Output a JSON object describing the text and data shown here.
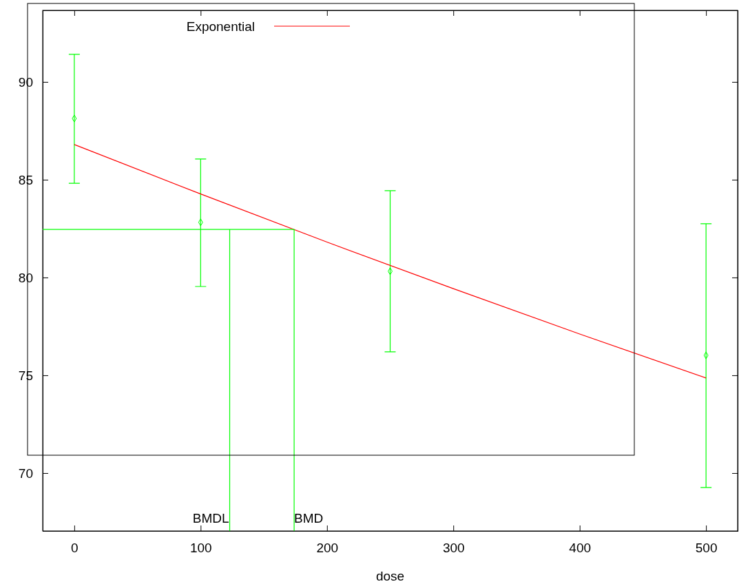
{
  "chart_data": {
    "type": "scatter",
    "xlabel": "dose",
    "xlim": [
      -25,
      525
    ],
    "ylim": [
      67.04,
      93.66
    ],
    "xticks": [
      0,
      100,
      200,
      300,
      400,
      500
    ],
    "yticks": [
      70,
      75,
      80,
      85,
      90
    ],
    "grid": false,
    "legend": "top",
    "series": [
      {
        "marker": "diamond",
        "color": "#00ff00",
        "x": [
          0,
          100,
          250,
          500
        ],
        "values": [
          88.13,
          82.82,
          80.32,
          76.02
        ],
        "errors": [
          [
            84.82,
            91.41
          ],
          [
            79.54,
            86.06
          ],
          [
            76.2,
            84.44
          ],
          [
            69.26,
            82.75
          ]
        ]
      },
      {
        "type": "line",
        "name": "Exponential",
        "color": "#ff0000",
        "x": [
          0,
          100,
          200,
          300,
          400,
          500
        ],
        "values": [
          86.8,
          84.27,
          81.81,
          79.43,
          77.11,
          74.86
        ]
      },
      {
        "type": "line",
        "color": "#00ff00",
        "x": [
          -25,
          174,
          174
        ],
        "values": [
          82.46,
          82.46,
          67.04
        ]
      },
      {
        "type": "line",
        "color": "#00ff00",
        "x": [
          123,
          123
        ],
        "values": [
          82.46,
          67.04
        ]
      }
    ],
    "annotations": [
      {
        "text": "BMDL",
        "x": 123,
        "y": 67.04
      },
      {
        "text": "BMD",
        "x": 174,
        "y": 67.04
      }
    ]
  }
}
